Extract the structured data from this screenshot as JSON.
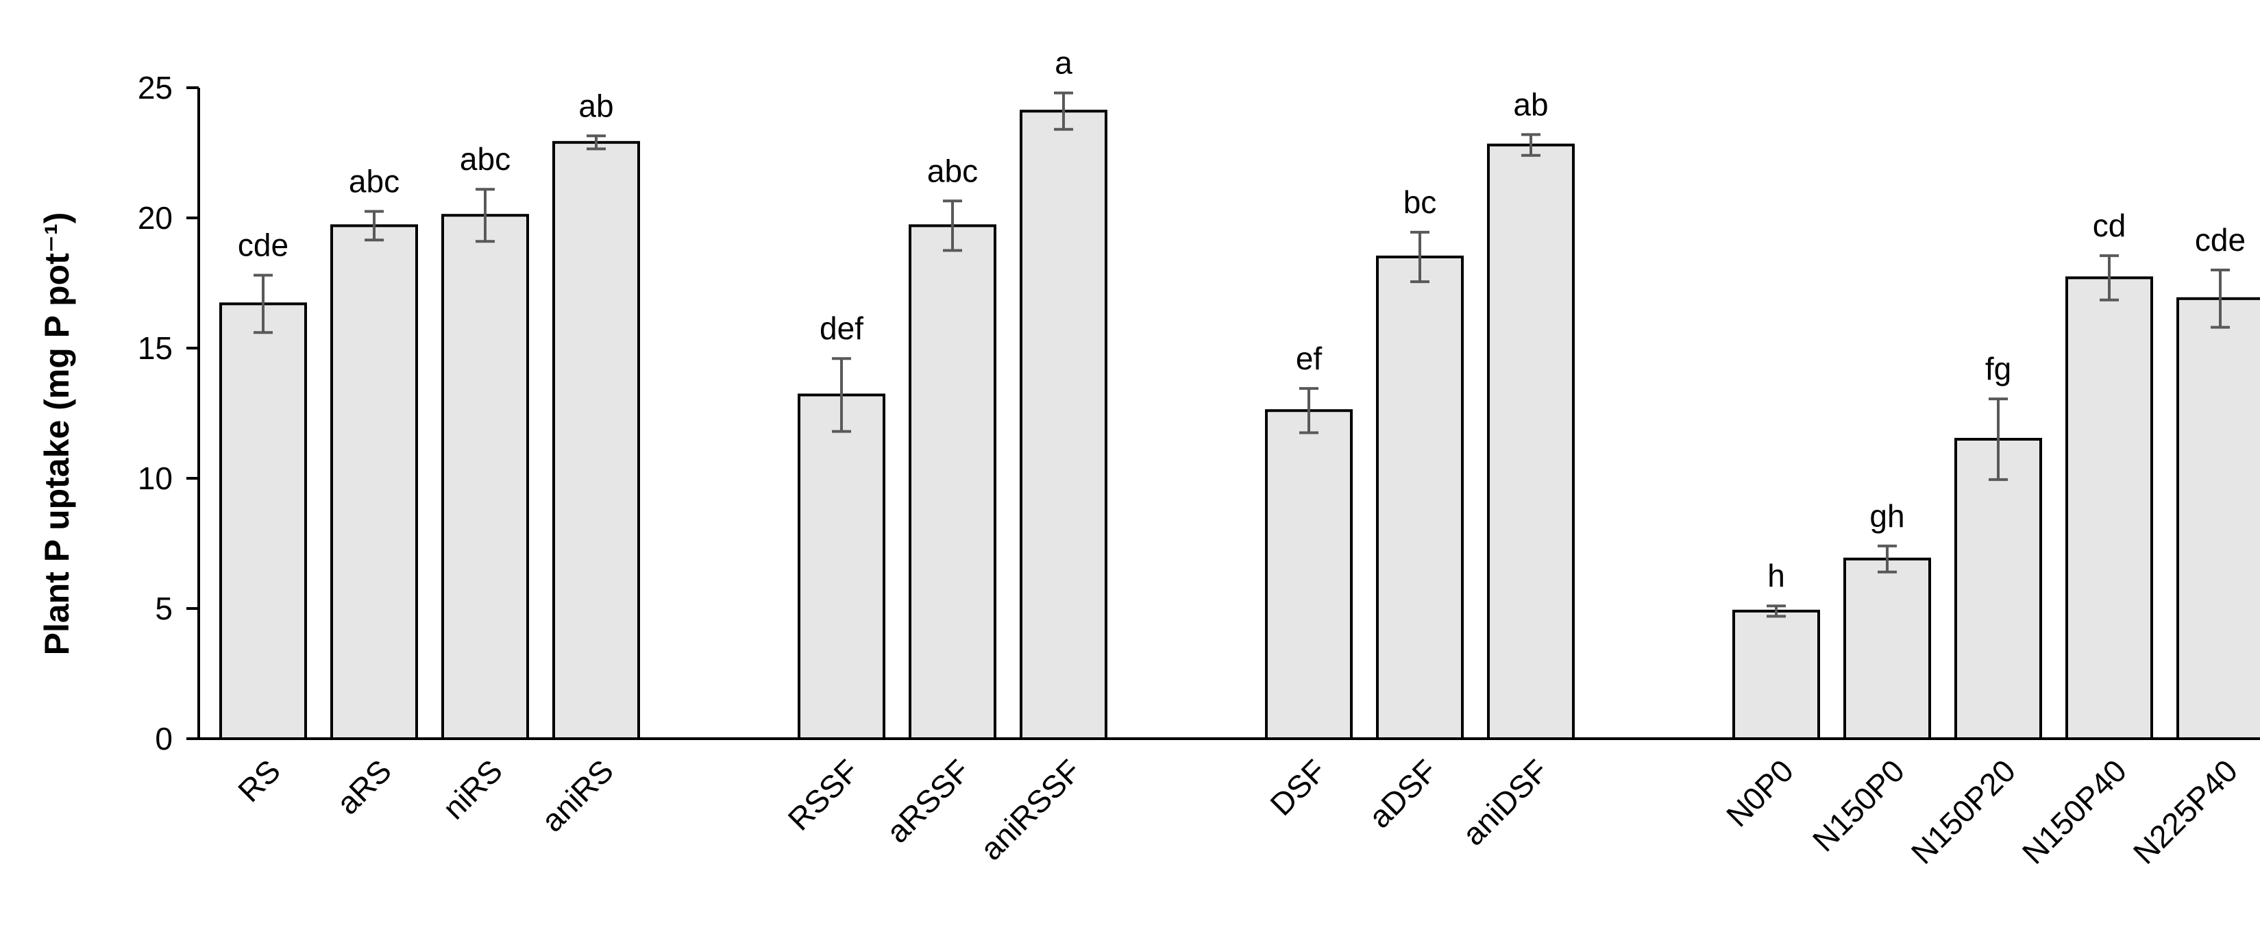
{
  "chart_data": {
    "type": "bar",
    "title": "",
    "xlabel": "",
    "ylabel": "Plant P uptake (mg P pot⁻¹)",
    "ylim": [
      0,
      25
    ],
    "yticks": [
      0,
      5,
      10,
      15,
      20,
      25
    ],
    "grid": false,
    "legend": "none",
    "colors": {
      "bar_fill": "#e6e6e6",
      "bar_stroke": "#000000",
      "error_bar": "#595959",
      "axis": "#000000"
    },
    "groups": [
      {
        "categories": [
          "RS",
          "aRS",
          "niRS",
          "aniRS"
        ]
      },
      {
        "categories": [
          "RSSF",
          "aRSSF",
          "aniRSSF"
        ]
      },
      {
        "categories": [
          "DSF",
          "aDSF",
          "aniDSF"
        ]
      },
      {
        "categories": [
          "N0P0",
          "N150P0",
          "N150P20",
          "N150P40",
          "N225P40"
        ]
      }
    ],
    "categories": [
      "RS",
      "aRS",
      "niRS",
      "aniRS",
      "RSSF",
      "aRSSF",
      "aniRSSF",
      "DSF",
      "aDSF",
      "aniDSF",
      "N0P0",
      "N150P0",
      "N150P20",
      "N150P40",
      "N225P40"
    ],
    "values": [
      16.7,
      19.7,
      20.1,
      22.9,
      13.2,
      19.7,
      24.1,
      12.6,
      18.5,
      22.8,
      4.9,
      6.9,
      11.5,
      17.7,
      16.9
    ],
    "errors": [
      1.1,
      0.55,
      1.0,
      0.25,
      1.4,
      0.95,
      0.7,
      0.85,
      0.95,
      0.4,
      0.2,
      0.5,
      1.55,
      0.85,
      1.1
    ],
    "significance_letters": [
      "cde",
      "abc",
      "abc",
      "ab",
      "def",
      "abc",
      "a",
      "ef",
      "bc",
      "ab",
      "h",
      "gh",
      "fg",
      "cd",
      "cde"
    ]
  }
}
